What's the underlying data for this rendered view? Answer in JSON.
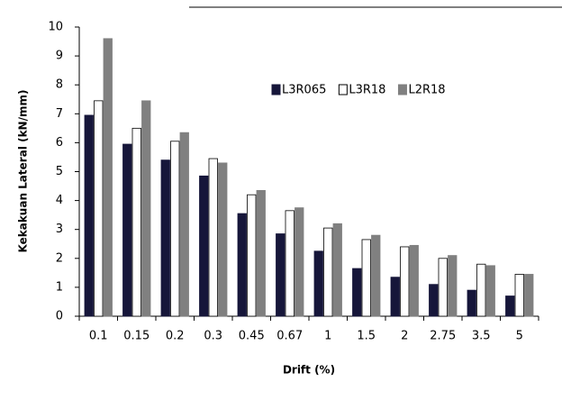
{
  "chart_data": {
    "type": "bar",
    "y_label": "Kekakuan Lateral (kN/mm)",
    "x_label": "Drift (%)",
    "categories": [
      "0.1",
      "0.15",
      "0.2",
      "0.3",
      "0.45",
      "0.67",
      "1",
      "1.5",
      "2",
      "2.75",
      "3.5",
      "5"
    ],
    "series": [
      {
        "name": "L3R065",
        "color": "#16163a",
        "values": [
          6.95,
          5.95,
          5.4,
          4.85,
          3.55,
          2.85,
          2.25,
          1.65,
          1.35,
          1.1,
          0.9,
          0.7
        ]
      },
      {
        "name": "L3R18",
        "color": "#ffffff",
        "values": [
          7.45,
          6.5,
          6.05,
          5.45,
          4.2,
          3.65,
          3.05,
          2.65,
          2.4,
          2.0,
          1.8,
          1.45
        ]
      },
      {
        "name": "L2R18",
        "color": "#808080",
        "values": [
          9.6,
          7.45,
          6.35,
          5.3,
          4.35,
          3.75,
          3.2,
          2.8,
          2.45,
          2.1,
          1.75,
          1.45
        ]
      }
    ],
    "ylim": [
      0,
      10
    ],
    "yticks": [
      0,
      1,
      2,
      3,
      4,
      5,
      6,
      7,
      8,
      9,
      10
    ],
    "grid": false
  }
}
